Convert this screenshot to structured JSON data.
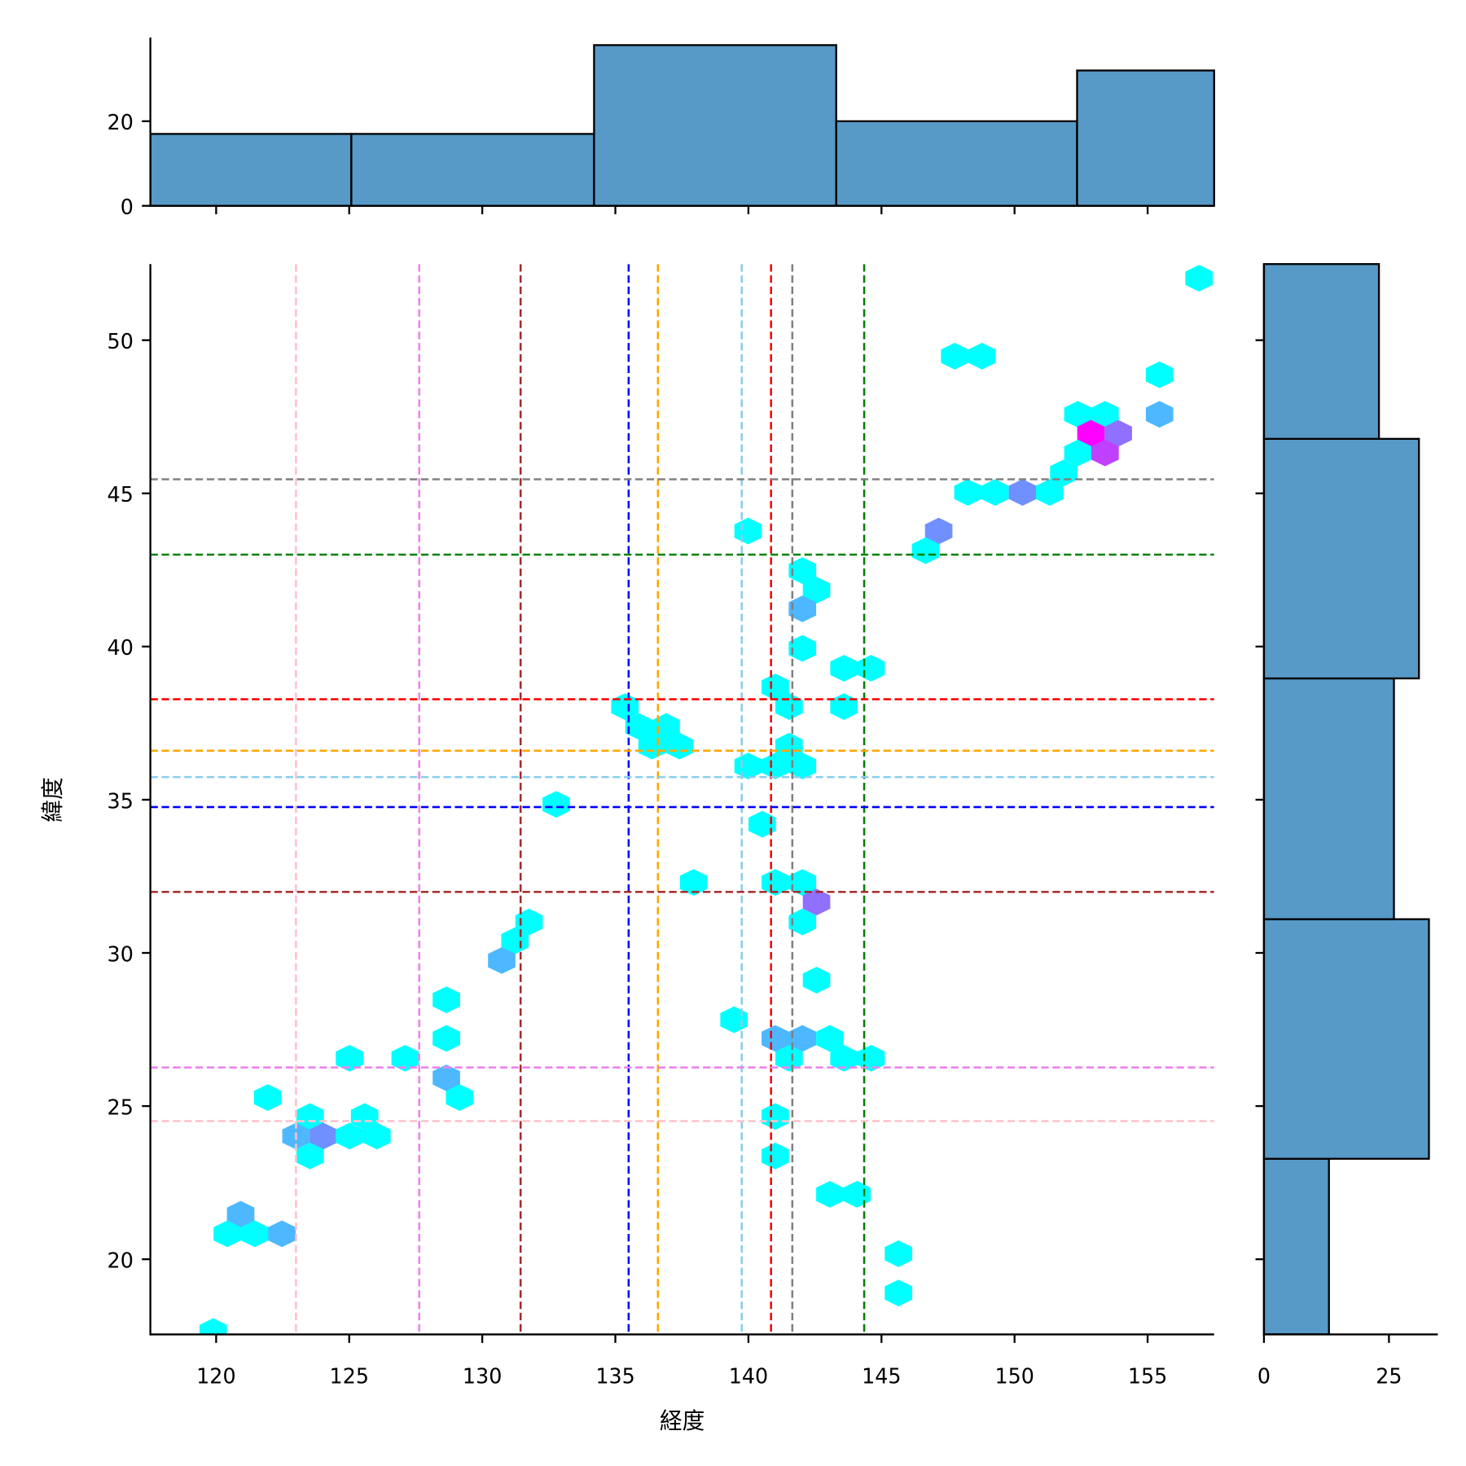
{
  "chart_data": {
    "type": "hexbin-jointplot",
    "xlabel": "経度",
    "ylabel": "緯度",
    "xlim": [
      117.5,
      157.5
    ],
    "ylim": [
      17.55,
      52.5
    ],
    "xticks": [
      120,
      125,
      130,
      135,
      140,
      145,
      150,
      155
    ],
    "yticks": [
      20,
      25,
      30,
      35,
      40,
      45,
      50
    ],
    "colormap": {
      "1": "#00ffff",
      "2": "#4db8ff",
      "3": "#7090ff",
      "4": "#9070ff",
      "5": "#c040ff",
      "6": "#ff00ff"
    },
    "hexbins": [
      {
        "lon": 156.93,
        "lat": 52.02,
        "count": 1
      },
      {
        "lon": 147.75,
        "lat": 49.48,
        "count": 1
      },
      {
        "lon": 148.78,
        "lat": 49.48,
        "count": 1
      },
      {
        "lon": 155.45,
        "lat": 48.87,
        "count": 1
      },
      {
        "lon": 152.38,
        "lat": 47.58,
        "count": 1
      },
      {
        "lon": 153.4,
        "lat": 47.58,
        "count": 1
      },
      {
        "lon": 155.45,
        "lat": 47.58,
        "count": 2
      },
      {
        "lon": 152.87,
        "lat": 46.96,
        "count": 6
      },
      {
        "lon": 153.9,
        "lat": 46.96,
        "count": 4
      },
      {
        "lon": 152.38,
        "lat": 46.32,
        "count": 1
      },
      {
        "lon": 153.4,
        "lat": 46.32,
        "count": 5
      },
      {
        "lon": 151.85,
        "lat": 45.67,
        "count": 1
      },
      {
        "lon": 148.25,
        "lat": 45.03,
        "count": 1
      },
      {
        "lon": 149.27,
        "lat": 45.03,
        "count": 1
      },
      {
        "lon": 150.3,
        "lat": 45.03,
        "count": 3
      },
      {
        "lon": 151.32,
        "lat": 45.03,
        "count": 1
      },
      {
        "lon": 147.15,
        "lat": 43.77,
        "count": 3
      },
      {
        "lon": 139.99,
        "lat": 43.77,
        "count": 1
      },
      {
        "lon": 146.66,
        "lat": 43.13,
        "count": 1
      },
      {
        "lon": 142.03,
        "lat": 42.48,
        "count": 1
      },
      {
        "lon": 142.56,
        "lat": 41.84,
        "count": 1
      },
      {
        "lon": 142.03,
        "lat": 41.23,
        "count": 2
      },
      {
        "lon": 142.03,
        "lat": 39.94,
        "count": 1
      },
      {
        "lon": 143.59,
        "lat": 39.29,
        "count": 1
      },
      {
        "lon": 144.61,
        "lat": 39.29,
        "count": 1
      },
      {
        "lon": 141.01,
        "lat": 38.68,
        "count": 1
      },
      {
        "lon": 141.53,
        "lat": 38.04,
        "count": 1
      },
      {
        "lon": 143.59,
        "lat": 38.04,
        "count": 1
      },
      {
        "lon": 135.36,
        "lat": 38.04,
        "count": 1
      },
      {
        "lon": 135.89,
        "lat": 37.39,
        "count": 1
      },
      {
        "lon": 136.91,
        "lat": 37.39,
        "count": 1
      },
      {
        "lon": 136.38,
        "lat": 36.75,
        "count": 1
      },
      {
        "lon": 137.41,
        "lat": 36.75,
        "count": 1
      },
      {
        "lon": 141.53,
        "lat": 36.75,
        "count": 1
      },
      {
        "lon": 139.99,
        "lat": 36.1,
        "count": 1
      },
      {
        "lon": 141.01,
        "lat": 36.1,
        "count": 1
      },
      {
        "lon": 142.03,
        "lat": 36.1,
        "count": 1
      },
      {
        "lon": 132.78,
        "lat": 34.85,
        "count": 1
      },
      {
        "lon": 140.52,
        "lat": 34.2,
        "count": 1
      },
      {
        "lon": 137.94,
        "lat": 32.3,
        "count": 1
      },
      {
        "lon": 141.01,
        "lat": 32.3,
        "count": 1
      },
      {
        "lon": 142.03,
        "lat": 32.3,
        "count": 1
      },
      {
        "lon": 142.56,
        "lat": 31.66,
        "count": 4
      },
      {
        "lon": 142.03,
        "lat": 31.01,
        "count": 1
      },
      {
        "lon": 131.76,
        "lat": 31.01,
        "count": 1
      },
      {
        "lon": 131.23,
        "lat": 30.4,
        "count": 1
      },
      {
        "lon": 130.73,
        "lat": 29.75,
        "count": 2
      },
      {
        "lon": 142.56,
        "lat": 29.11,
        "count": 1
      },
      {
        "lon": 128.65,
        "lat": 28.47,
        "count": 1
      },
      {
        "lon": 139.46,
        "lat": 27.82,
        "count": 1
      },
      {
        "lon": 128.65,
        "lat": 27.21,
        "count": 1
      },
      {
        "lon": 141.01,
        "lat": 27.21,
        "count": 2
      },
      {
        "lon": 142.03,
        "lat": 27.21,
        "count": 2
      },
      {
        "lon": 143.06,
        "lat": 27.21,
        "count": 1
      },
      {
        "lon": 125.01,
        "lat": 26.56,
        "count": 1
      },
      {
        "lon": 127.1,
        "lat": 26.56,
        "count": 1
      },
      {
        "lon": 141.53,
        "lat": 26.56,
        "count": 1
      },
      {
        "lon": 143.59,
        "lat": 26.56,
        "count": 1
      },
      {
        "lon": 144.61,
        "lat": 26.56,
        "count": 1
      },
      {
        "lon": 128.65,
        "lat": 25.92,
        "count": 2
      },
      {
        "lon": 129.15,
        "lat": 25.28,
        "count": 1
      },
      {
        "lon": 121.94,
        "lat": 25.28,
        "count": 1
      },
      {
        "lon": 123.53,
        "lat": 24.66,
        "count": 1
      },
      {
        "lon": 125.58,
        "lat": 24.66,
        "count": 1
      },
      {
        "lon": 141.01,
        "lat": 24.66,
        "count": 1
      },
      {
        "lon": 123.0,
        "lat": 24.02,
        "count": 2
      },
      {
        "lon": 124.03,
        "lat": 24.02,
        "count": 3
      },
      {
        "lon": 125.01,
        "lat": 24.02,
        "count": 1
      },
      {
        "lon": 126.04,
        "lat": 24.02,
        "count": 1
      },
      {
        "lon": 123.53,
        "lat": 23.37,
        "count": 1
      },
      {
        "lon": 141.01,
        "lat": 23.37,
        "count": 1
      },
      {
        "lon": 143.06,
        "lat": 22.12,
        "count": 1
      },
      {
        "lon": 144.08,
        "lat": 22.12,
        "count": 1
      },
      {
        "lon": 120.92,
        "lat": 21.47,
        "count": 2
      },
      {
        "lon": 120.42,
        "lat": 20.83,
        "count": 1
      },
      {
        "lon": 121.45,
        "lat": 20.83,
        "count": 1
      },
      {
        "lon": 122.47,
        "lat": 20.83,
        "count": 2
      },
      {
        "lon": 145.64,
        "lat": 20.18,
        "count": 1
      },
      {
        "lon": 145.64,
        "lat": 18.9,
        "count": 1
      },
      {
        "lon": 119.89,
        "lat": 17.64,
        "count": 1
      }
    ],
    "vlines": [
      {
        "x": 123.0,
        "color": "#ffc0cb"
      },
      {
        "x": 127.63,
        "color": "#ee82ee"
      },
      {
        "x": 131.44,
        "color": "#a52a2a"
      },
      {
        "x": 135.5,
        "color": "#0000ff"
      },
      {
        "x": 136.6,
        "color": "#ffa500"
      },
      {
        "x": 139.75,
        "color": "#87ceeb"
      },
      {
        "x": 140.85,
        "color": "#ff0000"
      },
      {
        "x": 141.65,
        "color": "#808080"
      },
      {
        "x": 144.35,
        "color": "#008000"
      }
    ],
    "hlines": [
      {
        "y": 45.46,
        "color": "#808080"
      },
      {
        "y": 43.0,
        "color": "#008000"
      },
      {
        "y": 38.28,
        "color": "#ff0000"
      },
      {
        "y": 36.6,
        "color": "#ffa500"
      },
      {
        "y": 35.74,
        "color": "#87ceeb"
      },
      {
        "y": 34.76,
        "color": "#0000ff"
      },
      {
        "y": 31.99,
        "color": "#a52a2a"
      },
      {
        "y": 26.26,
        "color": "#ee82ee"
      },
      {
        "y": 24.51,
        "color": "#ffc0cb"
      }
    ],
    "marginal_x": {
      "bin_edges": [
        117.53,
        125.08,
        134.2,
        143.3,
        152.35,
        157.5
      ],
      "counts": [
        17,
        17,
        38,
        20,
        32
      ],
      "ylim": [
        0,
        39.8
      ],
      "yticks": [
        0,
        20
      ],
      "color": "#5799c7"
    },
    "marginal_y": {
      "bin_edges": [
        17.55,
        23.28,
        31.1,
        38.96,
        46.78,
        52.5
      ],
      "counts": [
        13,
        33,
        26,
        31,
        23
      ],
      "xlim": [
        0,
        34.8
      ],
      "xticks": [
        0,
        25
      ],
      "color": "#5799c7"
    }
  }
}
